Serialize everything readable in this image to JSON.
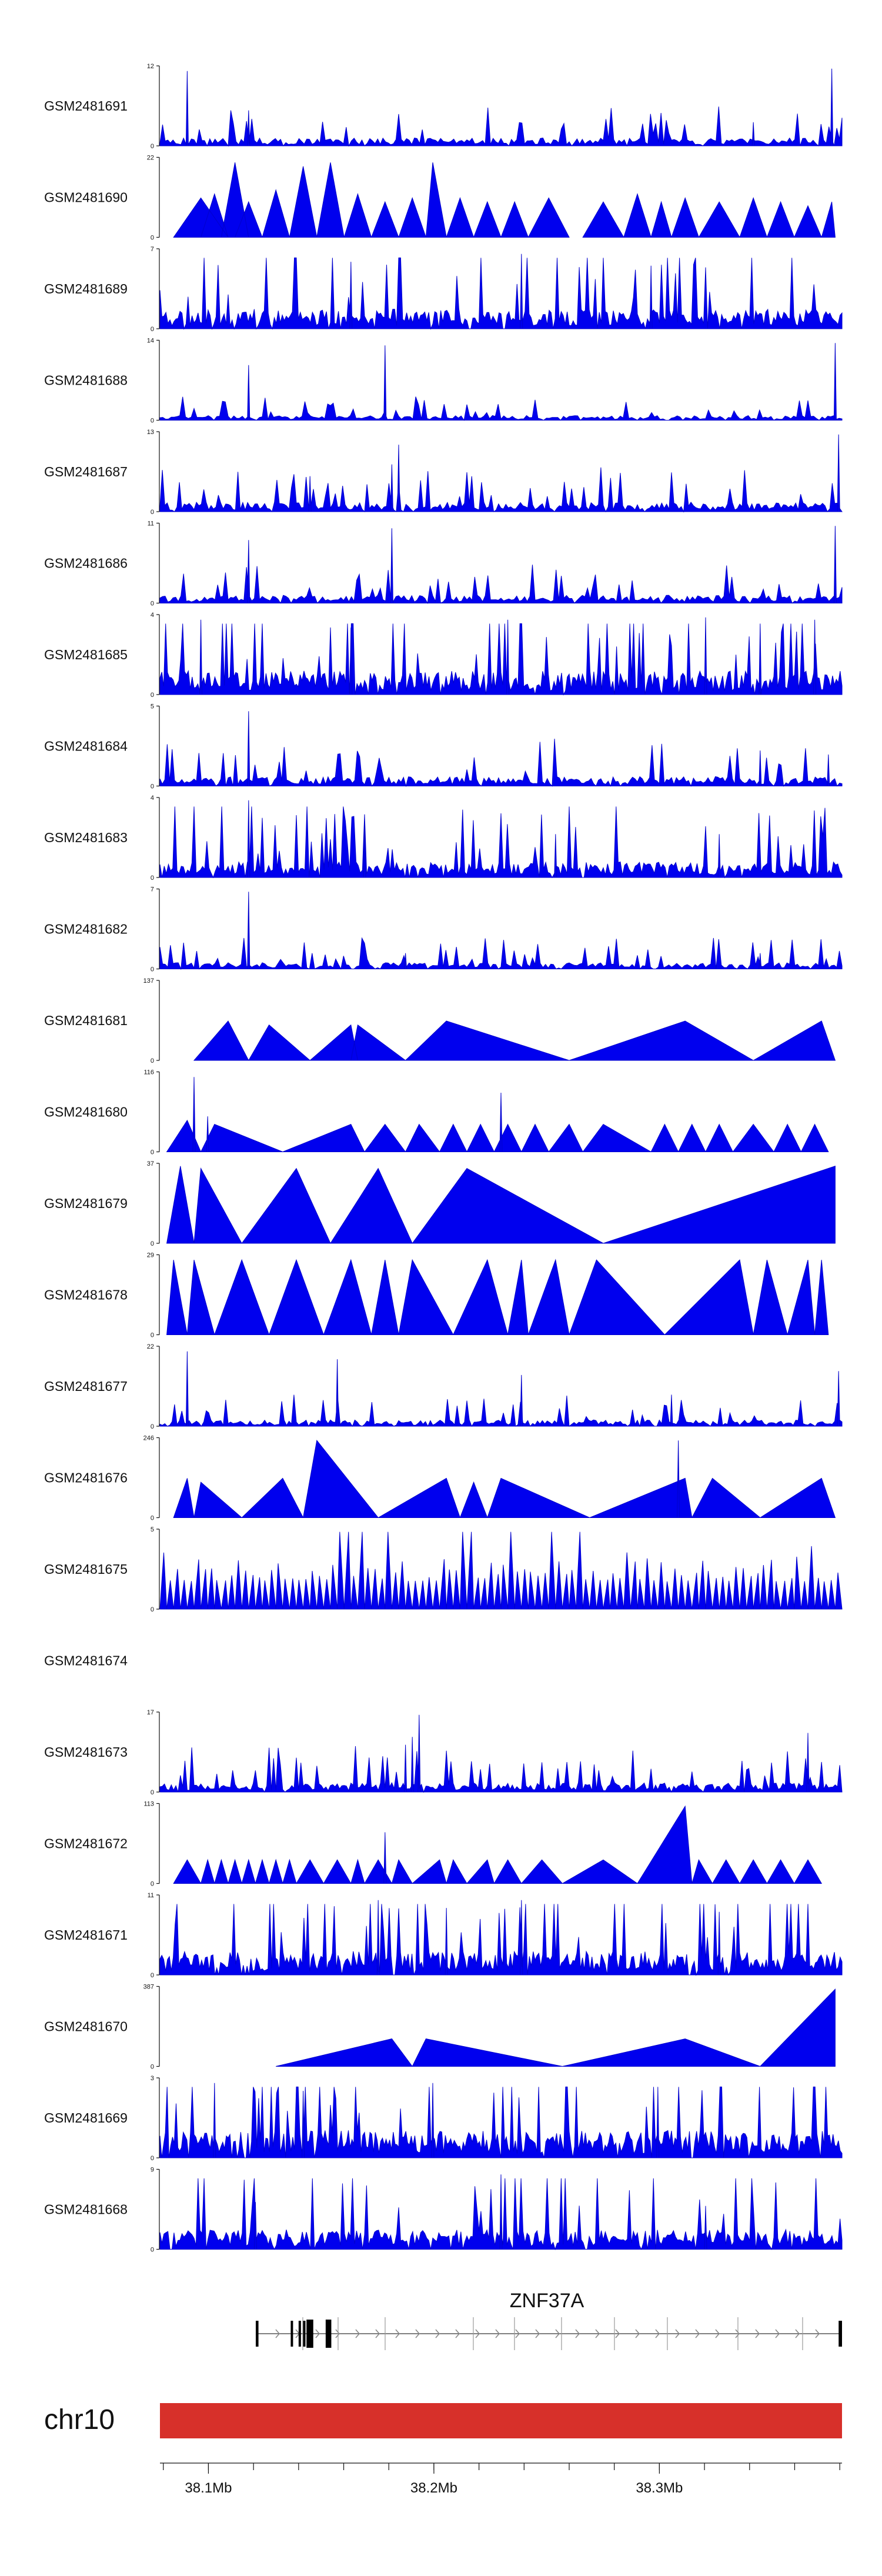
{
  "chart_data": {
    "type": "area",
    "title": "",
    "region": {
      "chromosome": "chr10",
      "start_mb": 38.0785,
      "end_mb": 38.381,
      "position_ticks": [
        "38.1Mb",
        "38.2Mb",
        "38.3Mb"
      ],
      "position_tick_values": [
        38.1,
        38.2,
        38.3
      ]
    },
    "gene": {
      "name": "ZNF37A",
      "strand": "+",
      "start_mb": 38.121,
      "end_mb": 38.381,
      "exons_mb": [
        [
          38.121,
          38.1222
        ],
        [
          38.1365,
          38.1372
        ],
        [
          38.14,
          38.141
        ],
        [
          38.142,
          38.143
        ],
        [
          38.1435,
          38.1465
        ],
        [
          38.152,
          38.1545
        ],
        [
          38.3795,
          38.381
        ]
      ]
    },
    "tracks": [
      {
        "name": "GSM2481691",
        "ymax": 12,
        "pattern": "spiky",
        "density": 260,
        "base": 0.1,
        "peaks": [
          [
            0.04,
            0.95
          ],
          [
            0.13,
            0.45
          ],
          [
            0.87,
            0.3
          ],
          [
            0.985,
            0.98
          ]
        ]
      },
      {
        "name": "GSM2481690",
        "ymax": 22,
        "pattern": "triangles",
        "span": [
          0.02,
          0.99
        ],
        "triangles": [
          [
            0.02,
            0.06,
            0.1,
            0.5
          ],
          [
            0.06,
            0.08,
            0.1,
            0.55
          ],
          [
            0.09,
            0.11,
            0.13,
            0.95
          ],
          [
            0.11,
            0.13,
            0.15,
            0.45
          ],
          [
            0.15,
            0.17,
            0.19,
            0.6
          ],
          [
            0.19,
            0.21,
            0.23,
            0.9
          ],
          [
            0.23,
            0.25,
            0.27,
            0.95
          ],
          [
            0.27,
            0.29,
            0.31,
            0.55
          ],
          [
            0.31,
            0.33,
            0.35,
            0.45
          ],
          [
            0.35,
            0.37,
            0.39,
            0.5
          ],
          [
            0.39,
            0.4,
            0.42,
            0.95
          ],
          [
            0.42,
            0.44,
            0.46,
            0.5
          ],
          [
            0.46,
            0.48,
            0.5,
            0.45
          ],
          [
            0.5,
            0.52,
            0.54,
            0.45
          ],
          [
            0.54,
            0.57,
            0.6,
            0.5
          ],
          [
            0.62,
            0.65,
            0.68,
            0.45
          ],
          [
            0.68,
            0.7,
            0.72,
            0.55
          ],
          [
            0.72,
            0.735,
            0.75,
            0.45
          ],
          [
            0.75,
            0.77,
            0.79,
            0.5
          ],
          [
            0.79,
            0.82,
            0.85,
            0.45
          ],
          [
            0.85,
            0.87,
            0.89,
            0.5
          ],
          [
            0.89,
            0.91,
            0.93,
            0.45
          ],
          [
            0.93,
            0.95,
            0.97,
            0.4
          ],
          [
            0.97,
            0.985,
            0.99,
            0.45
          ]
        ]
      },
      {
        "name": "GSM2481689",
        "ymax": 7,
        "pattern": "spiky",
        "density": 340,
        "base": 0.25,
        "peaks": [
          [
            0.28,
            0.85
          ],
          [
            0.53,
            0.95
          ],
          [
            0.72,
            0.8
          ]
        ]
      },
      {
        "name": "GSM2481688",
        "ymax": 14,
        "pattern": "spiky",
        "density": 240,
        "base": 0.06,
        "peaks": [
          [
            0.13,
            0.7
          ],
          [
            0.33,
            0.95
          ],
          [
            0.99,
            0.98
          ]
        ]
      },
      {
        "name": "GSM2481687",
        "ymax": 13,
        "pattern": "spiky",
        "density": 280,
        "base": 0.12,
        "peaks": [
          [
            0.22,
            0.45
          ],
          [
            0.34,
            0.6
          ],
          [
            0.35,
            0.85
          ],
          [
            0.995,
            0.98
          ]
        ]
      },
      {
        "name": "GSM2481686",
        "ymax": 11,
        "pattern": "spiky",
        "density": 260,
        "base": 0.1,
        "peaks": [
          [
            0.13,
            0.8
          ],
          [
            0.34,
            0.95
          ],
          [
            0.99,
            0.98
          ]
        ]
      },
      {
        "name": "GSM2481685",
        "ymax": 4,
        "pattern": "spiky",
        "density": 360,
        "base": 0.3,
        "peaks": [
          [
            0.06,
            0.95
          ],
          [
            0.28,
            0.85
          ],
          [
            0.51,
            0.95
          ],
          [
            0.8,
            0.98
          ],
          [
            0.88,
            0.9
          ],
          [
            0.96,
            0.95
          ]
        ]
      },
      {
        "name": "GSM2481684",
        "ymax": 5,
        "pattern": "spiky",
        "density": 280,
        "base": 0.12,
        "peaks": [
          [
            0.13,
            0.95
          ],
          [
            0.88,
            0.45
          ],
          [
            0.98,
            0.4
          ]
        ]
      },
      {
        "name": "GSM2481683",
        "ymax": 4,
        "pattern": "spiky",
        "density": 320,
        "base": 0.2,
        "peaks": [
          [
            0.13,
            0.98
          ],
          [
            0.3,
            0.7
          ],
          [
            0.58,
            0.55
          ],
          [
            0.82,
            0.55
          ]
        ]
      },
      {
        "name": "GSM2481682",
        "ymax": 7,
        "pattern": "spiky",
        "density": 260,
        "base": 0.08,
        "peaks": [
          [
            0.13,
            0.98
          ],
          [
            0.36,
            0.2
          ],
          [
            0.88,
            0.2
          ]
        ]
      },
      {
        "name": "GSM2481681",
        "ymax": 137,
        "pattern": "triangles",
        "span": [
          0.05,
          0.99
        ],
        "triangles": [
          [
            0.05,
            0.1,
            0.13,
            0.5
          ],
          [
            0.13,
            0.16,
            0.22,
            0.45
          ],
          [
            0.22,
            0.28,
            0.29,
            0.45
          ],
          [
            0.28,
            0.29,
            0.36,
            0.45
          ],
          [
            0.36,
            0.42,
            0.6,
            0.5
          ],
          [
            0.6,
            0.77,
            0.87,
            0.5
          ],
          [
            0.87,
            0.97,
            0.99,
            0.5
          ]
        ]
      },
      {
        "name": "GSM2481680",
        "ymax": 116,
        "pattern": "triangles",
        "span": [
          0.01,
          0.98
        ],
        "triangles": [
          [
            0.01,
            0.04,
            0.06,
            0.4
          ],
          [
            0.06,
            0.08,
            0.18,
            0.35
          ],
          [
            0.18,
            0.28,
            0.3,
            0.35
          ],
          [
            0.3,
            0.33,
            0.36,
            0.35
          ],
          [
            0.36,
            0.38,
            0.41,
            0.35
          ],
          [
            0.41,
            0.43,
            0.45,
            0.35
          ],
          [
            0.45,
            0.47,
            0.49,
            0.35
          ],
          [
            0.49,
            0.51,
            0.53,
            0.35
          ],
          [
            0.53,
            0.55,
            0.57,
            0.35
          ],
          [
            0.57,
            0.6,
            0.62,
            0.35
          ],
          [
            0.62,
            0.65,
            0.72,
            0.35
          ],
          [
            0.72,
            0.74,
            0.76,
            0.35
          ],
          [
            0.76,
            0.78,
            0.8,
            0.35
          ],
          [
            0.8,
            0.82,
            0.84,
            0.35
          ],
          [
            0.84,
            0.87,
            0.9,
            0.35
          ],
          [
            0.9,
            0.92,
            0.94,
            0.35
          ],
          [
            0.94,
            0.96,
            0.98,
            0.35
          ]
        ],
        "peaks": [
          [
            0.05,
            0.95
          ],
          [
            0.07,
            0.45
          ],
          [
            0.5,
            0.75
          ]
        ]
      },
      {
        "name": "GSM2481679",
        "ymax": 37,
        "pattern": "triangles",
        "span": [
          0.01,
          0.99
        ],
        "triangles": [
          [
            0.01,
            0.03,
            0.05,
            0.98
          ],
          [
            0.05,
            0.06,
            0.12,
            0.95
          ],
          [
            0.12,
            0.2,
            0.25,
            0.95
          ],
          [
            0.25,
            0.32,
            0.37,
            0.95
          ],
          [
            0.37,
            0.45,
            0.65,
            0.95
          ],
          [
            0.65,
            0.99,
            0.99,
            0.98
          ]
        ]
      },
      {
        "name": "GSM2481678",
        "ymax": 29,
        "pattern": "triangles",
        "span": [
          0.01,
          0.98
        ],
        "triangles": [
          [
            0.01,
            0.02,
            0.04,
            0.95
          ],
          [
            0.04,
            0.05,
            0.08,
            0.95
          ],
          [
            0.08,
            0.12,
            0.16,
            0.95
          ],
          [
            0.16,
            0.2,
            0.24,
            0.95
          ],
          [
            0.24,
            0.28,
            0.31,
            0.95
          ],
          [
            0.31,
            0.33,
            0.35,
            0.95
          ],
          [
            0.35,
            0.37,
            0.43,
            0.95
          ],
          [
            0.43,
            0.48,
            0.51,
            0.95
          ],
          [
            0.51,
            0.53,
            0.54,
            0.95
          ],
          [
            0.54,
            0.58,
            0.6,
            0.95
          ],
          [
            0.6,
            0.64,
            0.74,
            0.95
          ],
          [
            0.74,
            0.85,
            0.87,
            0.95
          ],
          [
            0.87,
            0.89,
            0.92,
            0.95
          ],
          [
            0.92,
            0.95,
            0.96,
            0.95
          ],
          [
            0.96,
            0.97,
            0.98,
            0.95
          ]
        ]
      },
      {
        "name": "GSM2481677",
        "ymax": 22,
        "pattern": "spiky",
        "density": 280,
        "base": 0.08,
        "peaks": [
          [
            0.04,
            0.95
          ],
          [
            0.26,
            0.85
          ],
          [
            0.53,
            0.65
          ],
          [
            0.75,
            0.4
          ],
          [
            0.995,
            0.7
          ]
        ]
      },
      {
        "name": "GSM2481676",
        "ymax": 246,
        "pattern": "triangles",
        "span": [
          0.02,
          0.99
        ],
        "triangles": [
          [
            0.02,
            0.04,
            0.05,
            0.5
          ],
          [
            0.05,
            0.06,
            0.12,
            0.45
          ],
          [
            0.12,
            0.18,
            0.21,
            0.5
          ],
          [
            0.21,
            0.23,
            0.32,
            0.98
          ],
          [
            0.32,
            0.42,
            0.44,
            0.5
          ],
          [
            0.44,
            0.46,
            0.48,
            0.45
          ],
          [
            0.48,
            0.5,
            0.63,
            0.5
          ],
          [
            0.63,
            0.77,
            0.78,
            0.5
          ],
          [
            0.78,
            0.81,
            0.88,
            0.5
          ],
          [
            0.88,
            0.97,
            0.99,
            0.5
          ]
        ],
        "peaks": [
          [
            0.76,
            0.98
          ]
        ]
      },
      {
        "name": "GSM2481675",
        "ymax": 5,
        "pattern": "triangles_dense",
        "span": [
          0.0,
          1.0
        ],
        "count": 100,
        "hmin": 0.35,
        "hmax": 0.98
      },
      {
        "name": "GSM2481674",
        "ymax": null,
        "pattern": "empty"
      },
      {
        "name": "GSM2481673",
        "ymax": 17,
        "pattern": "spiky",
        "density": 300,
        "base": 0.12,
        "peaks": [
          [
            0.36,
            0.6
          ],
          [
            0.37,
            0.7
          ],
          [
            0.38,
            0.98
          ],
          [
            0.95,
            0.75
          ]
        ]
      },
      {
        "name": "GSM2481672",
        "ymax": 113,
        "pattern": "triangles",
        "span": [
          0.02,
          0.97
        ],
        "triangles": [
          [
            0.02,
            0.04,
            0.06,
            0.3
          ],
          [
            0.06,
            0.07,
            0.08,
            0.3
          ],
          [
            0.08,
            0.09,
            0.1,
            0.3
          ],
          [
            0.1,
            0.11,
            0.12,
            0.3
          ],
          [
            0.12,
            0.13,
            0.14,
            0.3
          ],
          [
            0.14,
            0.15,
            0.16,
            0.3
          ],
          [
            0.16,
            0.17,
            0.18,
            0.3
          ],
          [
            0.18,
            0.19,
            0.2,
            0.3
          ],
          [
            0.2,
            0.22,
            0.24,
            0.3
          ],
          [
            0.24,
            0.26,
            0.28,
            0.3
          ],
          [
            0.28,
            0.29,
            0.3,
            0.3
          ],
          [
            0.3,
            0.32,
            0.34,
            0.3
          ],
          [
            0.34,
            0.35,
            0.37,
            0.3
          ],
          [
            0.37,
            0.41,
            0.42,
            0.3
          ],
          [
            0.42,
            0.43,
            0.45,
            0.3
          ],
          [
            0.45,
            0.48,
            0.49,
            0.3
          ],
          [
            0.49,
            0.51,
            0.53,
            0.3
          ],
          [
            0.53,
            0.56,
            0.59,
            0.3
          ],
          [
            0.59,
            0.65,
            0.7,
            0.3
          ],
          [
            0.7,
            0.77,
            0.78,
            0.98
          ],
          [
            0.78,
            0.79,
            0.81,
            0.3
          ],
          [
            0.81,
            0.83,
            0.85,
            0.3
          ],
          [
            0.85,
            0.87,
            0.89,
            0.3
          ],
          [
            0.89,
            0.91,
            0.93,
            0.3
          ],
          [
            0.93,
            0.95,
            0.97,
            0.3
          ]
        ],
        "peaks": [
          [
            0.33,
            0.65
          ]
        ]
      },
      {
        "name": "GSM2481671",
        "ymax": 11,
        "pattern": "spiky",
        "density": 360,
        "base": 0.3,
        "peaks": [
          [
            0.32,
            0.95
          ],
          [
            0.42,
            0.85
          ],
          [
            0.53,
            0.95
          ],
          [
            0.82,
            0.8
          ]
        ]
      },
      {
        "name": "GSM2481670",
        "ymax": 387,
        "pattern": "triangles",
        "span": [
          0.17,
          0.99
        ],
        "triangles": [
          [
            0.17,
            0.34,
            0.37,
            0.35
          ],
          [
            0.37,
            0.39,
            0.59,
            0.35
          ],
          [
            0.59,
            0.77,
            0.88,
            0.35
          ],
          [
            0.88,
            0.99,
            0.99,
            0.98
          ]
        ]
      },
      {
        "name": "GSM2481669",
        "ymax": 3,
        "pattern": "spiky",
        "density": 380,
        "base": 0.35,
        "peaks": [
          [
            0.08,
            0.95
          ],
          [
            0.21,
            0.85
          ],
          [
            0.4,
            0.95
          ],
          [
            0.73,
            0.9
          ]
        ]
      },
      {
        "name": "GSM2481668",
        "ymax": 9,
        "pattern": "spiky",
        "density": 340,
        "base": 0.25,
        "peaks": [
          [
            0.14,
            0.6
          ],
          [
            0.5,
            0.95
          ],
          [
            0.8,
            0.55
          ]
        ]
      }
    ]
  }
}
